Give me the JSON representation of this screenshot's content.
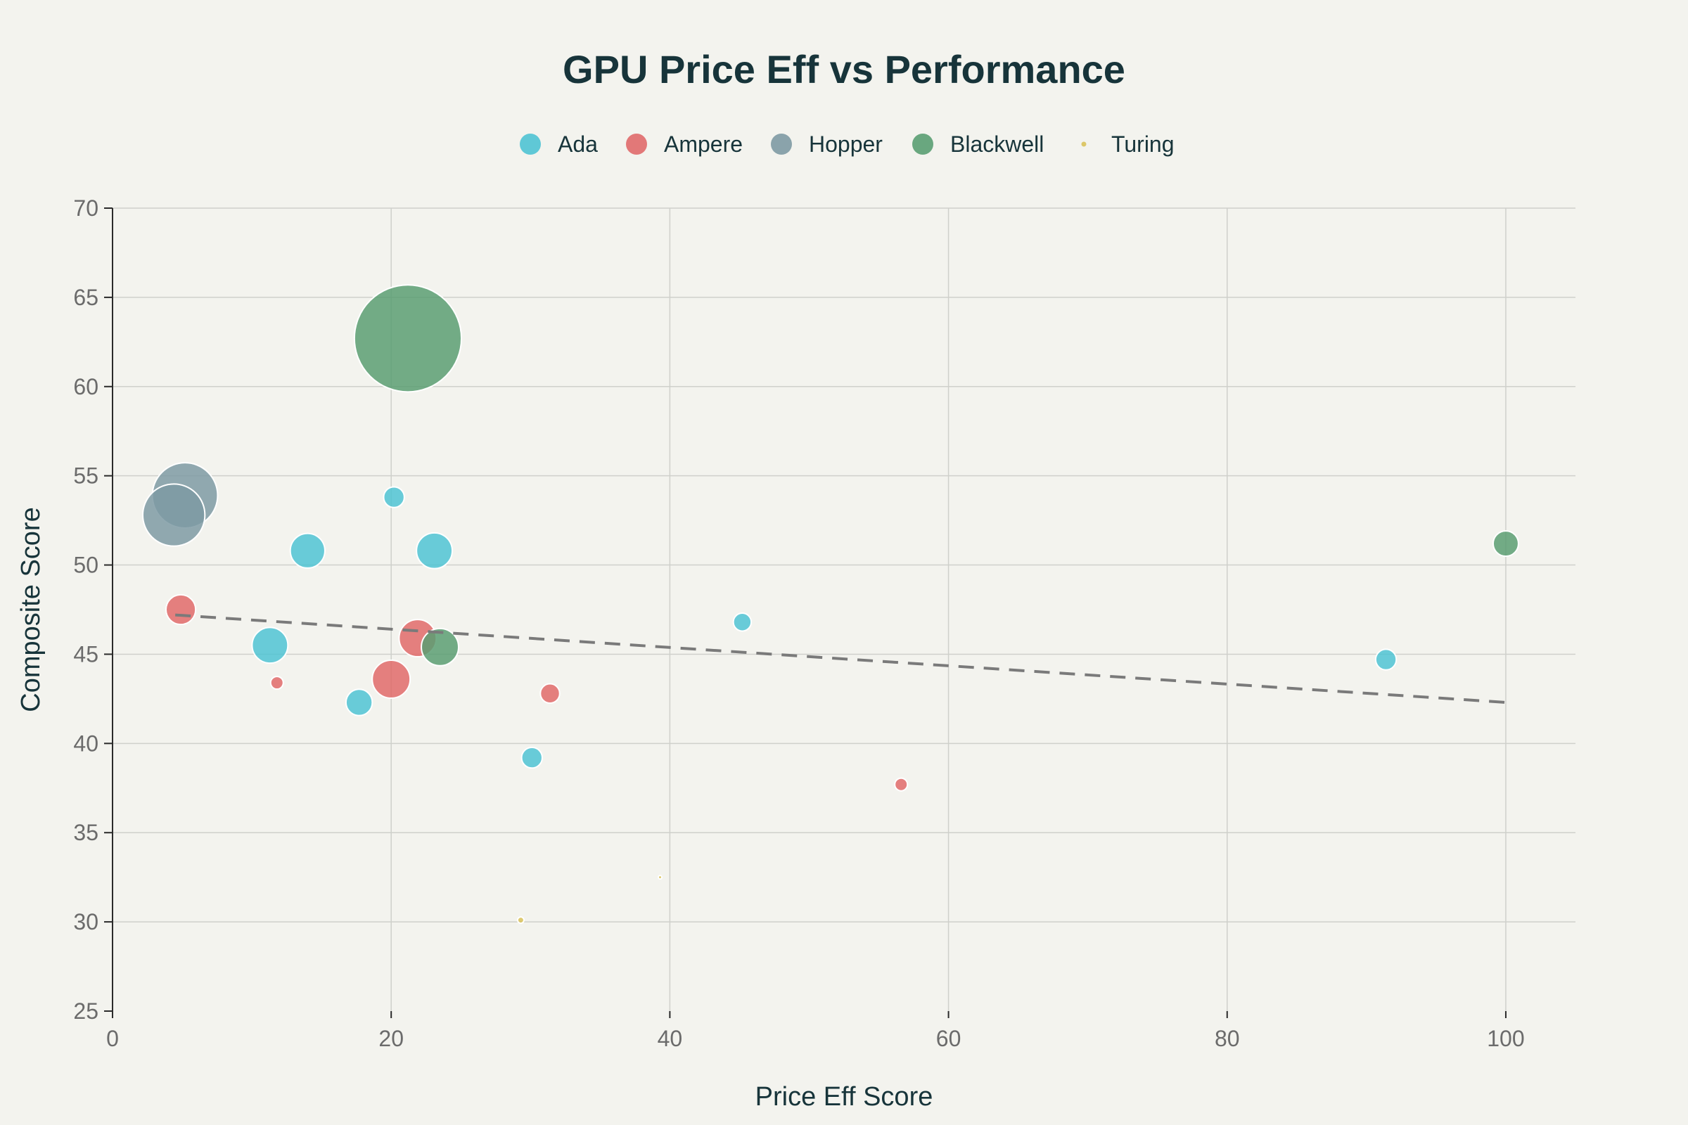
{
  "chart_data": {
    "type": "scatter",
    "title": "GPU Price Eff vs Performance",
    "xlabel": "Price Eff Score",
    "ylabel": "Composite Score",
    "xlim": [
      0,
      105
    ],
    "ylim": [
      25,
      70
    ],
    "x_ticks": [
      0,
      20,
      40,
      60,
      80,
      100
    ],
    "y_ticks": [
      25,
      30,
      35,
      40,
      45,
      50,
      55,
      60,
      65,
      70
    ],
    "grid": true,
    "legend_position": "top-center",
    "series": [
      {
        "name": "Ada",
        "color": "#4fc3d3",
        "points": [
          {
            "x": 20.2,
            "y": 53.8,
            "size": 1.6
          },
          {
            "x": 14.0,
            "y": 50.8,
            "size": 4.5
          },
          {
            "x": 23.1,
            "y": 50.8,
            "size": 4.8
          },
          {
            "x": 11.3,
            "y": 45.5,
            "size": 4.8
          },
          {
            "x": 17.7,
            "y": 42.3,
            "size": 2.6
          },
          {
            "x": 30.1,
            "y": 39.2,
            "size": 1.6
          },
          {
            "x": 45.2,
            "y": 46.8,
            "size": 1.2
          },
          {
            "x": 91.4,
            "y": 44.7,
            "size": 1.6
          }
        ]
      },
      {
        "name": "Ampere",
        "color": "#e06a6a",
        "points": [
          {
            "x": 4.9,
            "y": 47.5,
            "size": 3.3
          },
          {
            "x": 11.8,
            "y": 43.4,
            "size": 0.6
          },
          {
            "x": 20.0,
            "y": 43.6,
            "size": 5.4
          },
          {
            "x": 21.9,
            "y": 45.9,
            "size": 5.2
          },
          {
            "x": 31.4,
            "y": 42.8,
            "size": 1.4
          },
          {
            "x": 56.6,
            "y": 37.7,
            "size": 0.6
          }
        ]
      },
      {
        "name": "Hopper",
        "color": "#7e9aa3",
        "points": [
          {
            "x": 5.2,
            "y": 53.9,
            "size": 16.0
          },
          {
            "x": 4.4,
            "y": 52.8,
            "size": 14.5
          }
        ]
      },
      {
        "name": "Blackwell",
        "color": "#5a9e72",
        "points": [
          {
            "x": 21.2,
            "y": 62.7,
            "size": 43.0
          },
          {
            "x": 23.5,
            "y": 45.4,
            "size": 5.2
          },
          {
            "x": 100.0,
            "y": 51.2,
            "size": 2.4
          }
        ]
      },
      {
        "name": "Turing",
        "color": "#d9c25a",
        "points": [
          {
            "x": 29.3,
            "y": 30.1,
            "size": 0.15
          },
          {
            "x": 39.3,
            "y": 32.5,
            "size": 0.02
          }
        ]
      }
    ],
    "trendline": {
      "x": [
        4.5,
        100.0
      ],
      "y": [
        47.2,
        42.3
      ],
      "style": "dashed",
      "color": "#7a7a7a"
    }
  }
}
